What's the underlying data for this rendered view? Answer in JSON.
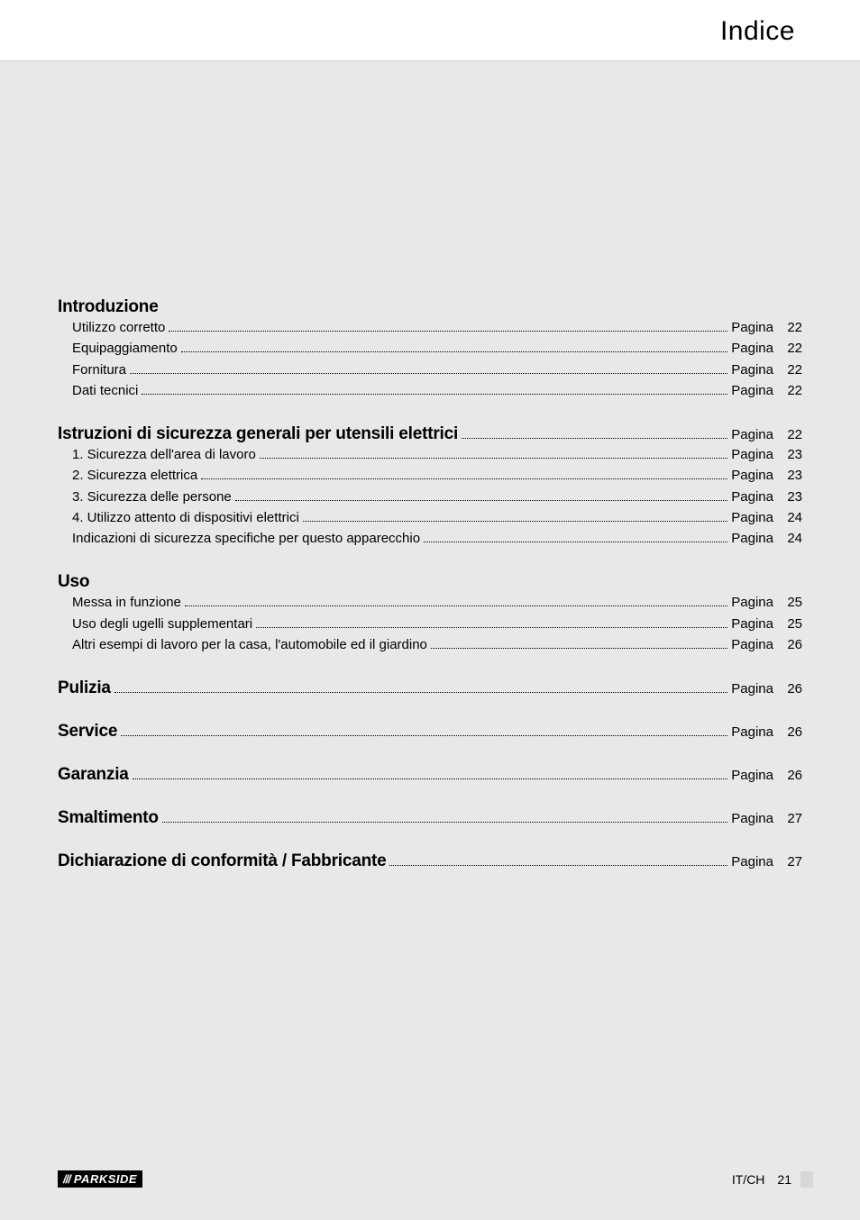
{
  "header": {
    "title": "Indice"
  },
  "colors": {
    "page_bg": "#e8e8e8",
    "header_bg": "#ffffff",
    "text": "#000000",
    "brand_bg": "#000000",
    "brand_fg": "#ffffff",
    "footer_tick": "#d7d7d7"
  },
  "typography": {
    "header_title_fontsize": 30,
    "section_title_fontsize": 19,
    "section_title_weight": 800,
    "row_fontsize": 15,
    "row_weight": 300,
    "font_family": "Futura / Century Gothic / Arial"
  },
  "page_label": "Pagina",
  "toc": [
    {
      "title": "Introduzione",
      "page": null,
      "items": [
        {
          "label": "Utilizzo corretto",
          "page": 22
        },
        {
          "label": "Equipaggiamento",
          "page": 22
        },
        {
          "label": "Fornitura",
          "page": 22
        },
        {
          "label": "Dati tecnici",
          "page": 22
        }
      ]
    },
    {
      "title": "Istruzioni di sicurezza generali per utensili elettrici",
      "page": 22,
      "items": [
        {
          "label": "1. Sicurezza dell'area di lavoro",
          "page": 23
        },
        {
          "label": "2. Sicurezza elettrica",
          "page": 23
        },
        {
          "label": "3. Sicurezza delle persone",
          "page": 23
        },
        {
          "label": "4. Utilizzo attento di dispositivi elettrici",
          "page": 24
        },
        {
          "label": "Indicazioni di sicurezza specifiche per questo apparecchio",
          "page": 24
        }
      ]
    },
    {
      "title": "Uso",
      "page": null,
      "items": [
        {
          "label": "Messa in funzione",
          "page": 25
        },
        {
          "label": "Uso degli ugelli supplementari",
          "page": 25
        },
        {
          "label": "Altri esempi di lavoro per la casa, l'automobile ed il giardino",
          "page": 26
        }
      ]
    },
    {
      "title": "Pulizia",
      "page": 26,
      "items": []
    },
    {
      "title": "Service",
      "page": 26,
      "items": []
    },
    {
      "title": "Garanzia",
      "page": 26,
      "items": []
    },
    {
      "title": "Smaltimento",
      "page": 27,
      "items": []
    },
    {
      "title": "Dichiarazione di conformità / Fabbricante",
      "page": 27,
      "items": []
    }
  ],
  "footer": {
    "brand_slashes": "///",
    "brand_name": "PARKSIDE",
    "region": "IT/CH",
    "page_number": 21
  }
}
